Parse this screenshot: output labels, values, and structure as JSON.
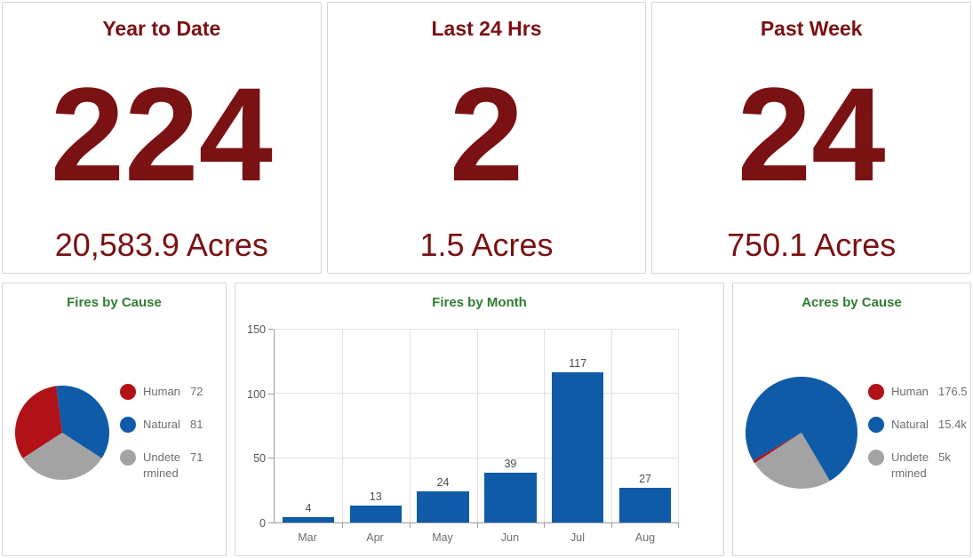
{
  "colors": {
    "maroon": "#7a1113",
    "title_green": "#2e7d32",
    "series_red": "#b11217",
    "series_blue": "#0f5ba7",
    "series_gray": "#a3a3a3"
  },
  "stats": [
    {
      "title": "Year to Date",
      "count": "224",
      "acres": "20,583.9 Acres"
    },
    {
      "title": "Last 24 Hrs",
      "count": "2",
      "acres": "1.5 Acres"
    },
    {
      "title": "Past Week",
      "count": "24",
      "acres": "750.1 Acres"
    }
  ],
  "chart_data": [
    {
      "type": "pie",
      "title": "Fires by Cause",
      "legend_position": "right",
      "start_angle_deg": 237,
      "slices": [
        {
          "label": "Human",
          "value": 72,
          "display": "72",
          "color": "#b11217"
        },
        {
          "label": "Natural",
          "value": 81,
          "display": "81",
          "color": "#0f5ba7"
        },
        {
          "label": "Undetermined",
          "value": 71,
          "display": "71",
          "color": "#a3a3a3"
        }
      ]
    },
    {
      "type": "bar",
      "title": "Fires by Month",
      "categories": [
        "Mar",
        "Apr",
        "May",
        "Jun",
        "Jul",
        "Aug"
      ],
      "values": [
        4,
        13,
        24,
        39,
        117,
        27
      ],
      "xlabel": "",
      "ylabel": "",
      "ylim": [
        0,
        150
      ],
      "yticks": [
        0,
        50,
        100,
        150
      ],
      "grid": true,
      "bar_color": "#0f5ba7",
      "legend_position": "none"
    },
    {
      "type": "pie",
      "title": "Acres by Cause",
      "legend_position": "right",
      "start_angle_deg": 237,
      "slices": [
        {
          "label": "Human",
          "value": 176.5,
          "display": "176.5",
          "color": "#b11217"
        },
        {
          "label": "Natural",
          "value": 15400,
          "display": "15.4k",
          "color": "#0f5ba7"
        },
        {
          "label": "Undetermined",
          "value": 5000,
          "display": "5k",
          "color": "#a3a3a3"
        }
      ]
    }
  ]
}
